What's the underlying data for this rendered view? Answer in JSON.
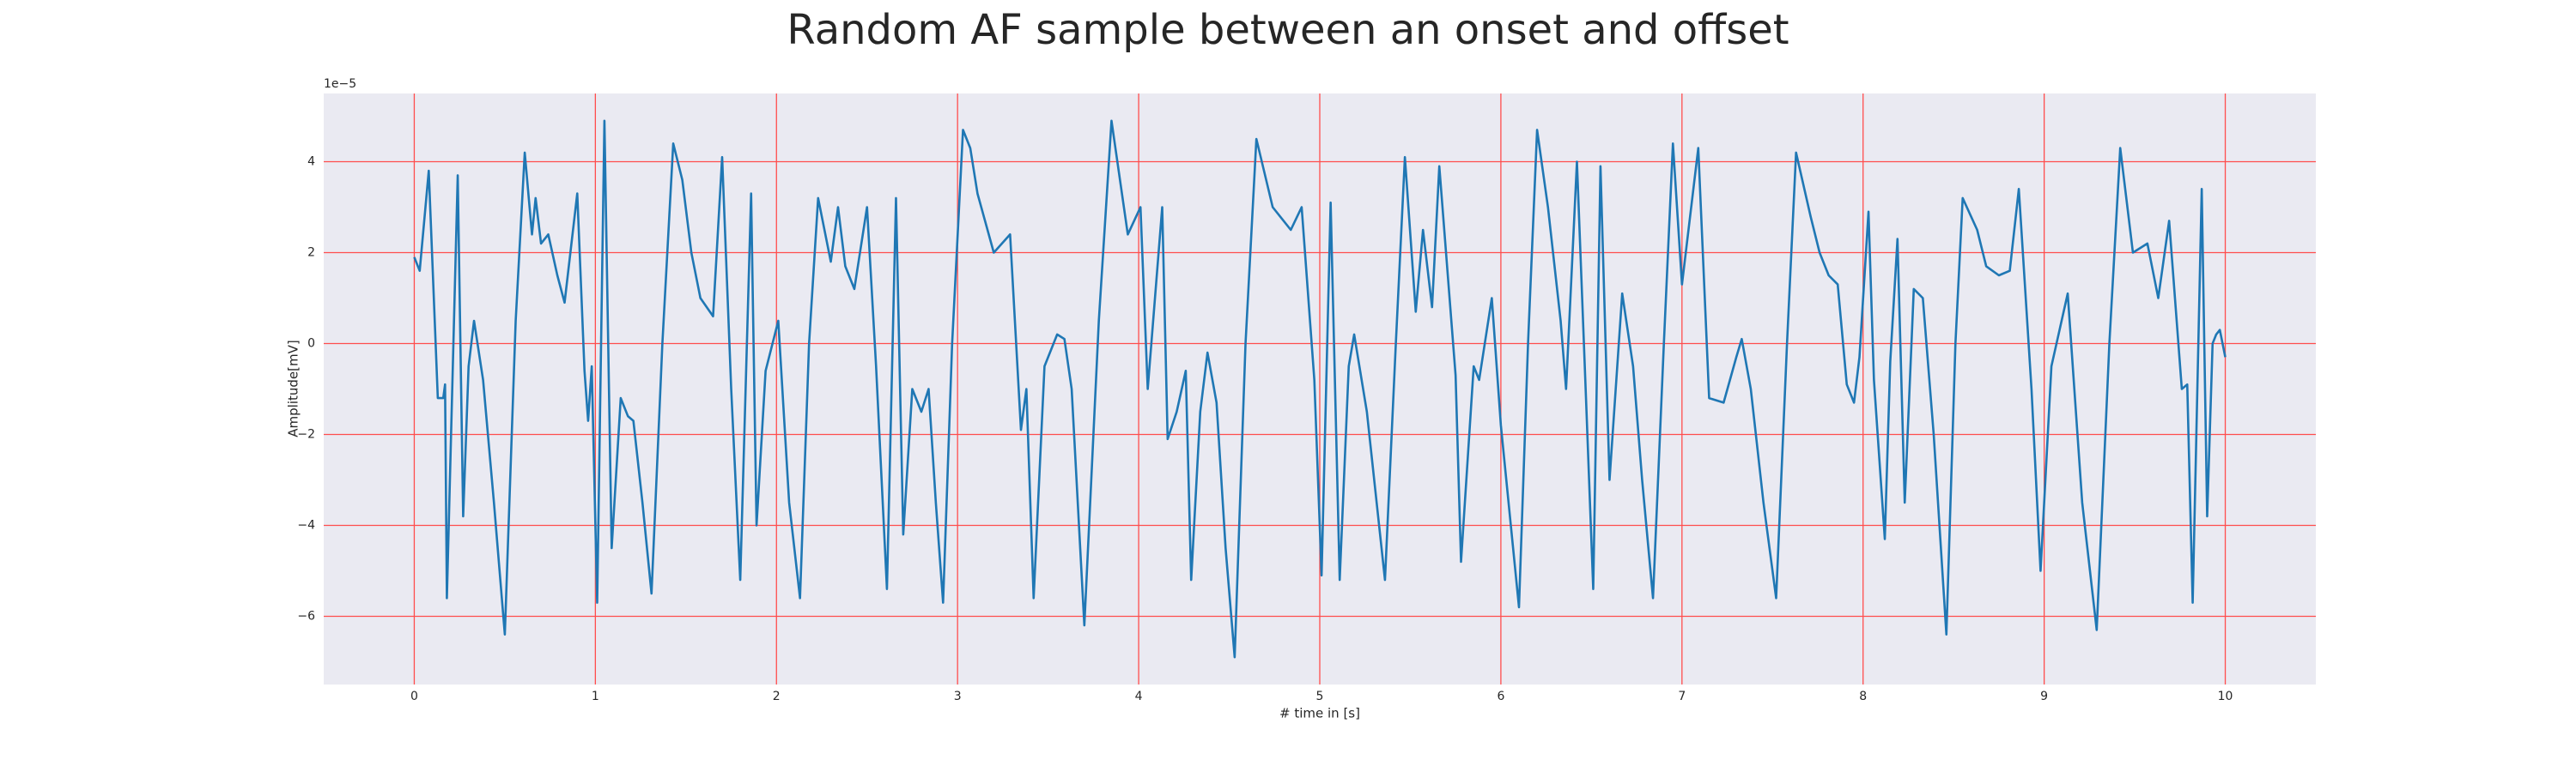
{
  "chart_data": {
    "type": "line",
    "title": "Random AF sample between an onset and offset",
    "x_label": "# time in [s]",
    "y_label": "Amplitude[mV]",
    "y_offset_label": "1e−5",
    "color": "#1f77b4",
    "grid": true,
    "grid_color": "#ff4d4d",
    "background": "#eaeaf2",
    "xlim": [
      -0.5,
      10.5
    ],
    "ylim": [
      -7.5,
      5.5
    ],
    "xticks": [
      0,
      1,
      2,
      3,
      4,
      5,
      6,
      7,
      8,
      9,
      10
    ],
    "yticks": [
      {
        "value": -6,
        "label": "−6"
      },
      {
        "value": -4,
        "label": "−4"
      },
      {
        "value": -2,
        "label": "−2"
      },
      0,
      2,
      4
    ],
    "x": [
      0.0,
      0.03,
      0.08,
      0.13,
      0.16,
      0.17,
      0.18,
      0.24,
      0.27,
      0.3,
      0.33,
      0.38,
      0.44,
      0.5,
      0.56,
      0.61,
      0.65,
      0.67,
      0.7,
      0.74,
      0.79,
      0.83,
      0.9,
      0.94,
      0.96,
      0.98,
      1.01,
      1.05,
      1.09,
      1.14,
      1.18,
      1.21,
      1.26,
      1.31,
      1.37,
      1.43,
      1.48,
      1.53,
      1.58,
      1.65,
      1.7,
      1.75,
      1.8,
      1.86,
      1.89,
      1.94,
      2.01,
      2.07,
      2.13,
      2.18,
      2.23,
      2.3,
      2.34,
      2.38,
      2.43,
      2.5,
      2.55,
      2.61,
      2.66,
      2.7,
      2.75,
      2.8,
      2.84,
      2.88,
      2.92,
      2.97,
      3.03,
      3.07,
      3.11,
      3.2,
      3.29,
      3.35,
      3.38,
      3.42,
      3.48,
      3.55,
      3.59,
      3.63,
      3.7,
      3.78,
      3.85,
      3.94,
      4.01,
      4.05,
      4.13,
      4.16,
      4.21,
      4.26,
      4.29,
      4.34,
      4.38,
      4.43,
      4.48,
      4.53,
      4.59,
      4.65,
      4.74,
      4.84,
      4.9,
      4.97,
      5.01,
      5.06,
      5.11,
      5.16,
      5.19,
      5.26,
      5.36,
      5.42,
      5.47,
      5.53,
      5.57,
      5.62,
      5.66,
      5.75,
      5.78,
      5.85,
      5.88,
      5.95,
      6.0,
      6.1,
      6.15,
      6.2,
      6.26,
      6.33,
      6.36,
      6.42,
      6.47,
      6.51,
      6.55,
      6.6,
      6.67,
      6.73,
      6.78,
      6.84,
      6.9,
      6.95,
      7.0,
      7.09,
      7.15,
      7.23,
      7.3,
      7.33,
      7.38,
      7.45,
      7.52,
      7.58,
      7.63,
      7.71,
      7.76,
      7.81,
      7.86,
      7.91,
      7.95,
      7.98,
      8.03,
      8.06,
      8.12,
      8.15,
      8.19,
      8.23,
      8.28,
      8.33,
      8.39,
      8.46,
      8.51,
      8.55,
      8.63,
      8.68,
      8.75,
      8.81,
      8.86,
      8.93,
      8.98,
      9.04,
      9.13,
      9.21,
      9.29,
      9.36,
      9.42,
      9.49,
      9.57,
      9.63,
      9.69,
      9.76,
      9.79,
      9.82,
      9.87,
      9.9,
      9.93,
      9.95,
      9.97,
      10.0
    ],
    "values": [
      1.9,
      1.6,
      3.8,
      -1.2,
      -1.2,
      -0.9,
      -5.6,
      3.7,
      -3.8,
      -0.5,
      0.5,
      -0.8,
      -3.5,
      -6.4,
      0.5,
      4.2,
      2.4,
      3.2,
      2.2,
      2.4,
      1.5,
      0.9,
      3.3,
      -0.6,
      -1.7,
      -0.5,
      -5.7,
      4.9,
      -4.5,
      -1.2,
      -1.6,
      -1.7,
      -3.5,
      -5.5,
      0.0,
      4.4,
      3.6,
      2.0,
      1.0,
      0.6,
      4.1,
      -1.0,
      -5.2,
      3.3,
      -4.0,
      -0.6,
      0.5,
      -3.5,
      -5.6,
      0.0,
      3.2,
      1.8,
      3.0,
      1.7,
      1.2,
      3.0,
      -0.5,
      -5.4,
      3.2,
      -4.2,
      -1.0,
      -1.5,
      -1.0,
      -3.5,
      -5.7,
      0.0,
      4.7,
      4.3,
      3.3,
      2.0,
      2.4,
      -1.9,
      -1.0,
      -5.6,
      -0.5,
      0.2,
      0.1,
      -1.0,
      -6.2,
      0.5,
      4.9,
      2.4,
      3.0,
      -1.0,
      3.0,
      -2.1,
      -1.5,
      -0.6,
      -5.2,
      -1.5,
      -0.2,
      -1.3,
      -4.5,
      -6.9,
      0.0,
      4.5,
      3.0,
      2.5,
      3.0,
      -0.8,
      -5.1,
      3.1,
      -5.2,
      -0.5,
      0.2,
      -1.5,
      -5.2,
      0.0,
      4.1,
      0.7,
      2.5,
      0.8,
      3.9,
      -0.7,
      -4.8,
      -0.5,
      -0.8,
      1.0,
      -1.8,
      -5.8,
      0.0,
      4.7,
      3.0,
      0.5,
      -1.0,
      4.0,
      -1.2,
      -5.4,
      3.9,
      -3.0,
      1.1,
      -0.5,
      -3.0,
      -5.6,
      0.0,
      4.4,
      1.3,
      4.3,
      -1.2,
      -1.3,
      -0.3,
      0.1,
      -1.0,
      -3.5,
      -5.6,
      0.0,
      4.2,
      2.8,
      2.0,
      1.5,
      1.3,
      -0.9,
      -1.3,
      -0.3,
      2.9,
      -0.8,
      -4.3,
      -0.4,
      2.3,
      -3.5,
      1.2,
      1.0,
      -2.0,
      -6.4,
      0.0,
      3.2,
      2.5,
      1.7,
      1.5,
      1.6,
      3.4,
      -1.0,
      -5.0,
      -0.5,
      1.1,
      -3.5,
      -6.3,
      0.0,
      4.3,
      2.0,
      2.2,
      1.0,
      2.7,
      -1.0,
      -0.9,
      -5.7,
      3.4,
      -3.8,
      0.0,
      0.2,
      0.3,
      -0.3
    ]
  }
}
